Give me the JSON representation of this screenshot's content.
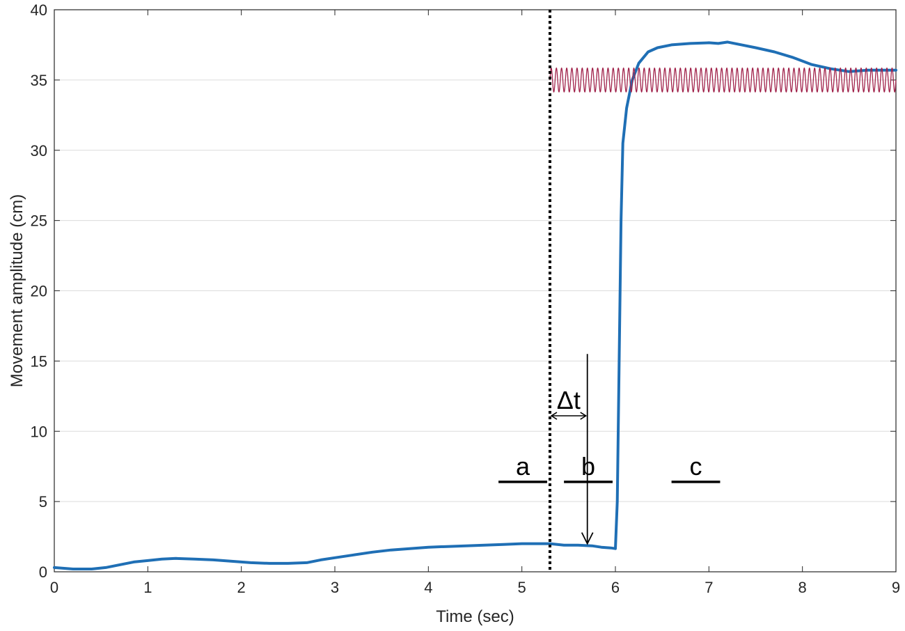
{
  "chart_data": {
    "type": "line",
    "title": "",
    "xlabel": "Time (sec)",
    "ylabel": "Movement amplitude (cm)",
    "xlim": [
      0,
      9
    ],
    "ylim": [
      0,
      40
    ],
    "xticks": [
      "0",
      "1",
      "2",
      "3",
      "4",
      "5",
      "6",
      "7",
      "8",
      "9"
    ],
    "yticks": [
      "0",
      "5",
      "10",
      "15",
      "20",
      "25",
      "30",
      "35",
      "40"
    ],
    "grid": "horizontal",
    "legend": "none",
    "series": [
      {
        "color": "#1f6fb5",
        "points": [
          [
            0,
            0.3
          ],
          [
            0.2,
            0.2
          ],
          [
            0.4,
            0.2
          ],
          [
            0.55,
            0.3
          ],
          [
            0.7,
            0.5
          ],
          [
            0.85,
            0.7
          ],
          [
            1.0,
            0.8
          ],
          [
            1.15,
            0.9
          ],
          [
            1.3,
            0.95
          ],
          [
            1.5,
            0.9
          ],
          [
            1.7,
            0.85
          ],
          [
            1.9,
            0.75
          ],
          [
            2.1,
            0.65
          ],
          [
            2.3,
            0.6
          ],
          [
            2.5,
            0.6
          ],
          [
            2.7,
            0.65
          ],
          [
            2.85,
            0.85
          ],
          [
            3.0,
            1.0
          ],
          [
            3.2,
            1.2
          ],
          [
            3.4,
            1.4
          ],
          [
            3.6,
            1.55
          ],
          [
            3.8,
            1.65
          ],
          [
            4.0,
            1.75
          ],
          [
            4.2,
            1.8
          ],
          [
            4.4,
            1.85
          ],
          [
            4.6,
            1.9
          ],
          [
            4.8,
            1.95
          ],
          [
            5.0,
            2.0
          ],
          [
            5.2,
            2.0
          ],
          [
            5.3,
            2.0
          ],
          [
            5.45,
            1.9
          ],
          [
            5.6,
            1.9
          ],
          [
            5.75,
            1.85
          ],
          [
            5.85,
            1.75
          ],
          [
            5.95,
            1.7
          ],
          [
            6.0,
            1.65
          ],
          [
            6.02,
            5
          ],
          [
            6.04,
            15
          ],
          [
            6.06,
            25
          ],
          [
            6.08,
            30.5
          ],
          [
            6.12,
            33
          ],
          [
            6.18,
            35
          ],
          [
            6.25,
            36.2
          ],
          [
            6.35,
            37.0
          ],
          [
            6.45,
            37.3
          ],
          [
            6.6,
            37.5
          ],
          [
            6.8,
            37.6
          ],
          [
            7.0,
            37.65
          ],
          [
            7.1,
            37.6
          ],
          [
            7.2,
            37.7
          ],
          [
            7.35,
            37.5
          ],
          [
            7.5,
            37.3
          ],
          [
            7.7,
            37.0
          ],
          [
            7.9,
            36.6
          ],
          [
            8.1,
            36.1
          ],
          [
            8.3,
            35.8
          ],
          [
            8.5,
            35.6
          ],
          [
            8.7,
            35.7
          ],
          [
            8.9,
            35.7
          ],
          [
            9.0,
            35.7
          ]
        ]
      },
      {
        "color": "#a0224a",
        "sine": {
          "x_start": 5.3,
          "x_end": 9.0,
          "center": 35.0,
          "amplitude": 0.85,
          "cycles": 67
        }
      }
    ],
    "annotations": {
      "onset_line": {
        "x": 5.3,
        "style": "dotted"
      },
      "arrow": {
        "x": 5.7,
        "from_y": 15.5,
        "to_y": 2.0
      },
      "delta_t": {
        "label": "Δt",
        "x1": 5.3,
        "x2": 5.7,
        "y": 11.1
      },
      "segments": [
        {
          "label": "a",
          "x1": 4.75,
          "x2": 5.27,
          "y": 6.4
        },
        {
          "label": "b",
          "x1": 5.45,
          "x2": 5.97,
          "y": 6.4
        },
        {
          "label": "c",
          "x1": 6.6,
          "x2": 7.12,
          "y": 6.4
        }
      ]
    }
  }
}
